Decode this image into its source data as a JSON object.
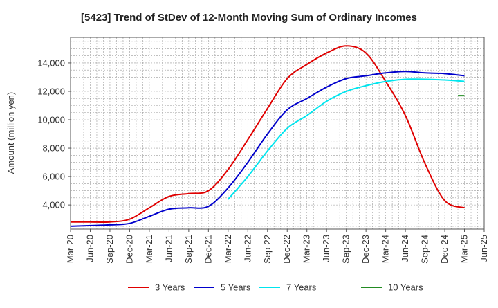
{
  "chart_data": {
    "type": "line",
    "title": "[5423]  Trend of StDev of 12-Month Moving Sum of Ordinary Incomes",
    "xlabel": "",
    "ylabel": "Amount (million yen)",
    "x_ticks": [
      "Mar-20",
      "Jun-20",
      "Sep-20",
      "Dec-20",
      "Mar-21",
      "Jun-21",
      "Sep-21",
      "Dec-21",
      "Mar-22",
      "Jun-22",
      "Sep-22",
      "Dec-22",
      "Mar-23",
      "Jun-23",
      "Sep-23",
      "Dec-23",
      "Mar-24",
      "Jun-24",
      "Sep-24",
      "Dec-24",
      "Mar-25",
      "Jun-25"
    ],
    "x_range": [
      0,
      63
    ],
    "y_ticks": [
      4000,
      6000,
      8000,
      10000,
      12000,
      14000
    ],
    "y_tick_labels": [
      "4,000",
      "6,000",
      "8,000",
      "10,000",
      "12,000",
      "14,000"
    ],
    "ylim": [
      2300,
      15800
    ],
    "grid": true,
    "legend_position": "bottom",
    "series": [
      {
        "name": "3 Years",
        "color": "#e00000",
        "x": [
          0,
          3,
          6,
          9,
          12,
          15,
          18,
          21,
          24,
          27,
          30,
          33,
          36,
          39,
          42,
          45,
          48,
          51,
          54,
          57,
          60
        ],
        "values": [
          2800,
          2800,
          2800,
          3000,
          3800,
          4600,
          4800,
          5000,
          6500,
          8600,
          10800,
          12900,
          13900,
          14700,
          15200,
          14700,
          12700,
          10300,
          6900,
          4300,
          3800
        ]
      },
      {
        "name": "5 Years",
        "color": "#0000cc",
        "x": [
          0,
          3,
          6,
          9,
          12,
          15,
          18,
          21,
          24,
          27,
          30,
          33,
          36,
          39,
          42,
          45,
          48,
          51,
          54,
          57,
          60
        ],
        "values": [
          2500,
          2550,
          2600,
          2700,
          3200,
          3700,
          3800,
          3900,
          5200,
          7000,
          9000,
          10700,
          11500,
          12300,
          12900,
          13100,
          13300,
          13400,
          13300,
          13250,
          13100
        ]
      },
      {
        "name": "7 Years",
        "color": "#00e5ee",
        "x": [
          24,
          27,
          30,
          33,
          36,
          39,
          42,
          45,
          48,
          51,
          54,
          57,
          60
        ],
        "values": [
          4400,
          6000,
          7800,
          9400,
          10300,
          11300,
          12000,
          12400,
          12700,
          12850,
          12850,
          12800,
          12700
        ]
      },
      {
        "name": "10 Years",
        "color": "#228b22",
        "x": [
          59,
          60
        ],
        "values": [
          11700,
          11700
        ]
      }
    ]
  }
}
